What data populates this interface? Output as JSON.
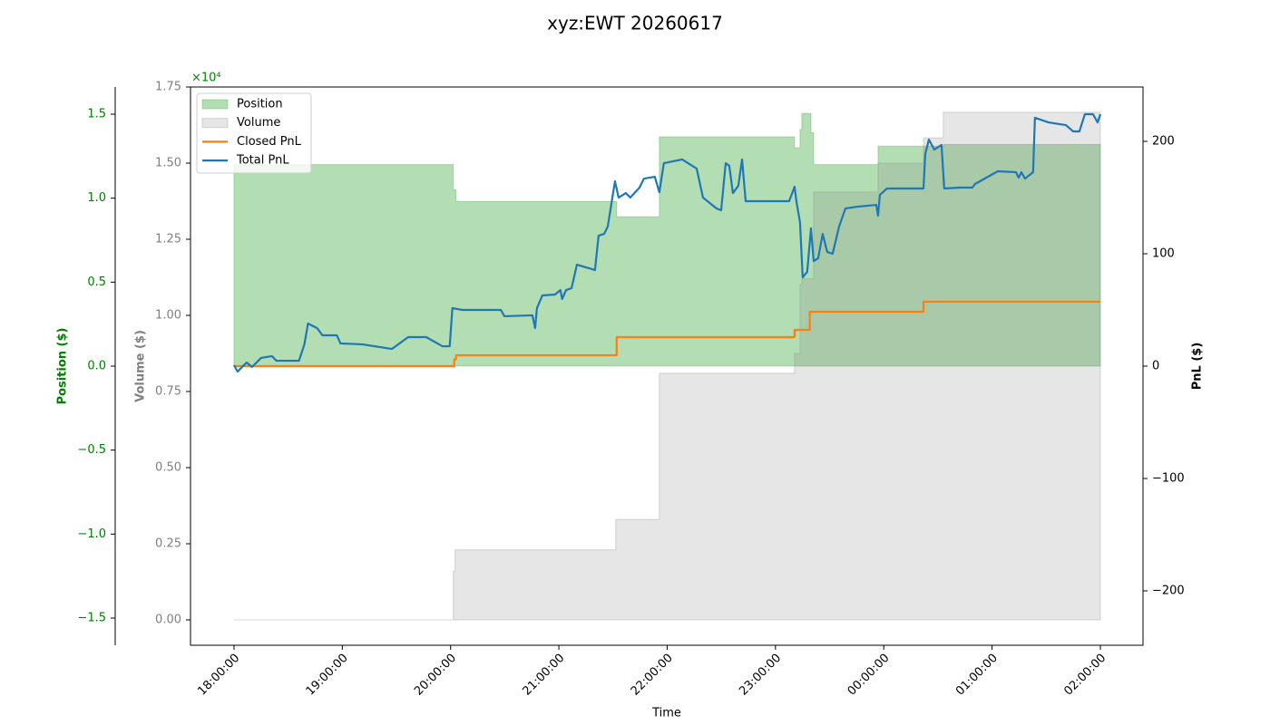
{
  "chart_data": {
    "type": "line",
    "title": "xyz:EWT 20260617",
    "xlabel": "Time",
    "ylabel": "Position ($)",
    "y3label": "Volume ($)",
    "y2label": "PnL ($)",
    "offset_text": "×10⁴",
    "legend": "upper left",
    "xlim": [
      "17:35:54",
      "02:23:38"
    ],
    "xticks": [
      "18:00:00",
      "19:00:00",
      "20:00:00",
      "21:00:00",
      "22:00:00",
      "23:00:00",
      "00:00:00",
      "01:00:00",
      "02:00:00"
    ],
    "ylim": [
      -1.662,
      1.662
    ],
    "yticks": [
      {
        "value": -1.5,
        "label": "−1.5"
      },
      {
        "value": -1,
        "label": "−1.0"
      },
      {
        "value": -0.5,
        "label": "−0.5"
      },
      {
        "value": 0,
        "label": "0.0"
      },
      {
        "value": 0.5,
        "label": "0.5"
      },
      {
        "value": 1,
        "label": "1.0"
      },
      {
        "value": 1.5,
        "label": "1.5"
      }
    ],
    "y3lim": [
      -0.0833,
      1.75
    ],
    "y3ticks": [
      {
        "value": 0,
        "label": "0.00"
      },
      {
        "value": 0.25,
        "label": "0.25"
      },
      {
        "value": 0.5,
        "label": "0.50"
      },
      {
        "value": 0.75,
        "label": "0.75"
      },
      {
        "value": 1,
        "label": "1.00"
      },
      {
        "value": 1.25,
        "label": "1.25"
      },
      {
        "value": 1.5,
        "label": "1.50"
      },
      {
        "value": 1.75,
        "label": "1.75"
      }
    ],
    "y2lim": [
      -248.4,
      248.4
    ],
    "y2ticks": [
      {
        "value": -200,
        "label": "−200"
      },
      {
        "value": -100,
        "label": "−100"
      },
      0,
      100,
      200
    ],
    "series": [
      {
        "name": "Position",
        "type": "area",
        "axis": "y",
        "color": "#2ca02c",
        "x": [
          "18:00:00",
          "20:00:00",
          "20:01:30",
          "20:03:00",
          "21:32:00",
          "21:55:40",
          "23:10:35",
          "23:13:35",
          "23:14:35",
          "23:19:40",
          "23:21:10",
          "23:56:50",
          "00:33:00",
          "02:00:00"
        ],
        "values": [
          1.2,
          1.2,
          1.05,
          0.98,
          0.89,
          1.365,
          1.3,
          1.41,
          1.505,
          1.39,
          1.2,
          1.31,
          1.32,
          1.32
        ]
      },
      {
        "name": "Volume",
        "type": "area",
        "axis": "y3",
        "color": "#808080",
        "x": [
          "18:00:00",
          "20:00:00",
          "20:01:30",
          "20:02:30",
          "21:31:30",
          "21:55:40",
          "23:10:35",
          "23:13:35",
          "23:14:35",
          "23:21:10",
          "23:56:50",
          "00:22:00",
          "00:33:00",
          "02:00:00"
        ],
        "values": [
          0,
          0,
          0.16,
          0.23,
          0.33,
          0.81,
          0.875,
          1.1,
          1.12,
          1.405,
          1.5,
          1.583,
          1.667,
          1.667
        ]
      },
      {
        "name": "Closed PnL",
        "type": "step",
        "axis": "y2",
        "color": "#ff7f0e",
        "x": [
          "18:00:00",
          "20:01:00",
          "20:02:00",
          "20:03:00",
          "21:32:00",
          "23:10:35",
          "23:19:00",
          "00:22:00",
          "02:00:00"
        ],
        "values": [
          0,
          0,
          6,
          9.7,
          25.8,
          32.3,
          48.4,
          57.3,
          57.3
        ]
      },
      {
        "name": "Total PnL",
        "type": "line",
        "axis": "y2",
        "color": "#1f77b4",
        "x": [
          "18:00:00",
          "18:02:00",
          "18:07:00",
          "18:10:00",
          "18:15:00",
          "18:21:00",
          "18:23:30",
          "18:36:00",
          "18:39:00",
          "18:41:00",
          "18:46:00",
          "18:49:00",
          "18:57:00",
          "18:59:00",
          "19:11:00",
          "19:27:30",
          "19:36:30",
          "19:46:30",
          "19:55:30",
          "19:59:30",
          "20:01:00",
          "20:06:40",
          "20:27:50",
          "20:29:50",
          "20:45:20",
          "20:46:50",
          "20:47:50",
          "20:50:50",
          "20:57:50",
          "21:00:50",
          "21:01:50",
          "21:04:00",
          "21:07:00",
          "21:10:00",
          "21:20:00",
          "21:22:00",
          "21:25:05",
          "21:27:05",
          "21:31:05",
          "21:33:05",
          "21:37:05",
          "21:39:35",
          "21:44:40",
          "21:47:10",
          "21:53:10",
          "21:55:40",
          "21:58:10",
          "22:08:20",
          "22:16:20",
          "22:19:50",
          "22:27:20",
          "22:29:55",
          "22:32:25",
          "22:34:25",
          "22:36:25",
          "22:39:25",
          "22:41:30",
          "22:43:30",
          "23:07:35",
          "23:10:35",
          "23:11:35",
          "23:13:35",
          "23:15:05",
          "23:17:35",
          "23:19:40",
          "23:21:10",
          "23:23:40",
          "23:26:10",
          "23:28:40",
          "23:31:40",
          "23:35:15",
          "23:38:45",
          "23:45:20",
          "23:55:50",
          "23:56:50",
          "23:57:50",
          "00:01:50",
          "00:22:00",
          "00:23:00",
          "00:25:00",
          "00:28:00",
          "00:32:00",
          "00:33:30",
          "00:42:05",
          "00:49:05",
          "00:50:35",
          "01:03:10",
          "01:13:15",
          "01:14:45",
          "01:16:15",
          "01:18:15",
          "01:22:45",
          "01:23:45",
          "01:31:20",
          "01:40:55",
          "01:44:55",
          "01:48:25",
          "01:51:25",
          "01:55:55",
          "01:58:30",
          "02:00:00"
        ],
        "values": [
          0.8,
          -4.8,
          3.2,
          -0.8,
          7.3,
          8.9,
          4.8,
          4.8,
          19.4,
          37.9,
          33.9,
          27.4,
          27.4,
          20.2,
          19.4,
          15.3,
          25.8,
          25.8,
          17.7,
          17.7,
          51.6,
          50,
          50,
          44.4,
          45.2,
          33.9,
          51.6,
          62.9,
          63.7,
          67.7,
          59.7,
          67.7,
          69.4,
          90.3,
          85.5,
          116.1,
          117.7,
          124.2,
          164.5,
          150,
          154,
          150,
          158.9,
          166.9,
          168.5,
          154.8,
          180.6,
          183.9,
          175.8,
          150,
          140.3,
          138.7,
          180.6,
          178.2,
          154,
          160.5,
          183.9,
          146.8,
          146.8,
          159.7,
          146.8,
          128.2,
          79,
          83.9,
          122.6,
          93.5,
          96,
          117.7,
          101.6,
          100,
          124.2,
          140.3,
          141.9,
          143.5,
          133.9,
          152.4,
          158.1,
          158.1,
          188.7,
          201.6,
          192.7,
          196.8,
          158.1,
          158.9,
          158.9,
          162.1,
          173.4,
          172.6,
          167.7,
          172.6,
          166.9,
          172.6,
          221,
          216.9,
          214.5,
          208.9,
          208.9,
          224.2,
          224.2,
          216.9,
          224.2
        ]
      }
    ]
  }
}
